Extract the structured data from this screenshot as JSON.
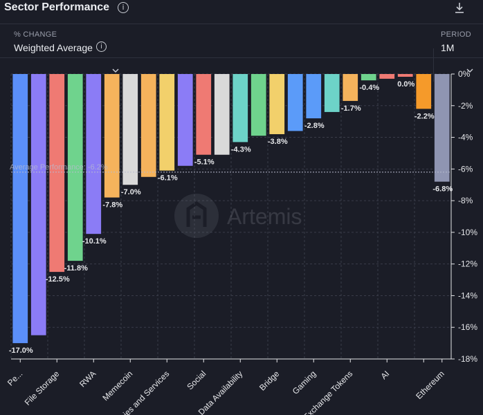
{
  "header": {
    "title": "Sector Performance"
  },
  "controls": {
    "metric_label": "% CHANGE",
    "metric_value": "Weighted Average",
    "period_label": "PERIOD",
    "period_value": "1M"
  },
  "watermark": "Artemis",
  "chart_data": {
    "type": "bar",
    "ylim": [
      -18,
      0
    ],
    "y_ticks": [
      "0%",
      "-2%",
      "-4%",
      "-6%",
      "-8%",
      "-10%",
      "-12%",
      "-14%",
      "-16%",
      "-18%"
    ],
    "y_tick_values": [
      0,
      -2,
      -4,
      -6,
      -8,
      -10,
      -12,
      -14,
      -16,
      -18
    ],
    "grid": true,
    "average_line": {
      "label": "Average Performance: -6.2%",
      "value": -6.2
    },
    "categories": [
      "Pe...",
      "",
      "File Storage",
      "",
      "RWA",
      "",
      "Memecoin",
      "",
      "ies and Services",
      "",
      "Social",
      "",
      "Data Availability",
      "",
      "Bridge",
      "",
      "Gaming",
      "",
      "Exchange Tokens",
      "",
      "AI",
      "",
      "",
      "Ethereum"
    ],
    "bars": [
      {
        "value": -17.0,
        "label": "-17.0%",
        "color": "#5b8ff9"
      },
      {
        "value": -16.5,
        "label": "",
        "color": "#8b7cf6"
      },
      {
        "value": -12.5,
        "label": "-12.5%",
        "color": "#ef7a73"
      },
      {
        "value": -11.8,
        "label": "-11.8%",
        "color": "#6fd38d"
      },
      {
        "value": -10.1,
        "label": "-10.1%",
        "color": "#8b7cf6"
      },
      {
        "value": -7.8,
        "label": "-7.8%",
        "color": "#f5b35c"
      },
      {
        "value": -7.0,
        "label": "-7.0%",
        "color": "#d9d9d9"
      },
      {
        "value": -6.5,
        "label": "",
        "color": "#f5b35c"
      },
      {
        "value": -6.1,
        "label": "-6.1%",
        "color": "#f2d06b"
      },
      {
        "value": -5.8,
        "label": "",
        "color": "#8b7cf6"
      },
      {
        "value": -5.1,
        "label": "-5.1%",
        "color": "#ef7a73"
      },
      {
        "value": -5.1,
        "label": "",
        "color": "#d9d9d9"
      },
      {
        "value": -4.3,
        "label": "-4.3%",
        "color": "#6dd3c8"
      },
      {
        "value": -3.9,
        "label": "",
        "color": "#6fd38d"
      },
      {
        "value": -3.8,
        "label": "-3.8%",
        "color": "#f2d06b"
      },
      {
        "value": -3.6,
        "label": "",
        "color": "#5b9bf9"
      },
      {
        "value": -2.8,
        "label": "-2.8%",
        "color": "#5b9bf9"
      },
      {
        "value": -2.4,
        "label": "",
        "color": "#6dd3c8"
      },
      {
        "value": -1.7,
        "label": "-1.7%",
        "color": "#f5b35c"
      },
      {
        "value": -0.4,
        "label": "-0.4%",
        "color": "#6fd38d"
      },
      {
        "value": -0.3,
        "label": "",
        "color": "#ef7a73"
      },
      {
        "value": 0.0,
        "label": "0.0%",
        "color": "#ef7a73"
      },
      {
        "value": -2.2,
        "label": "-2.2%",
        "color": "#f59a2a"
      },
      {
        "value": -6.8,
        "label": "-6.8%",
        "color": "#8f95b2"
      }
    ]
  }
}
